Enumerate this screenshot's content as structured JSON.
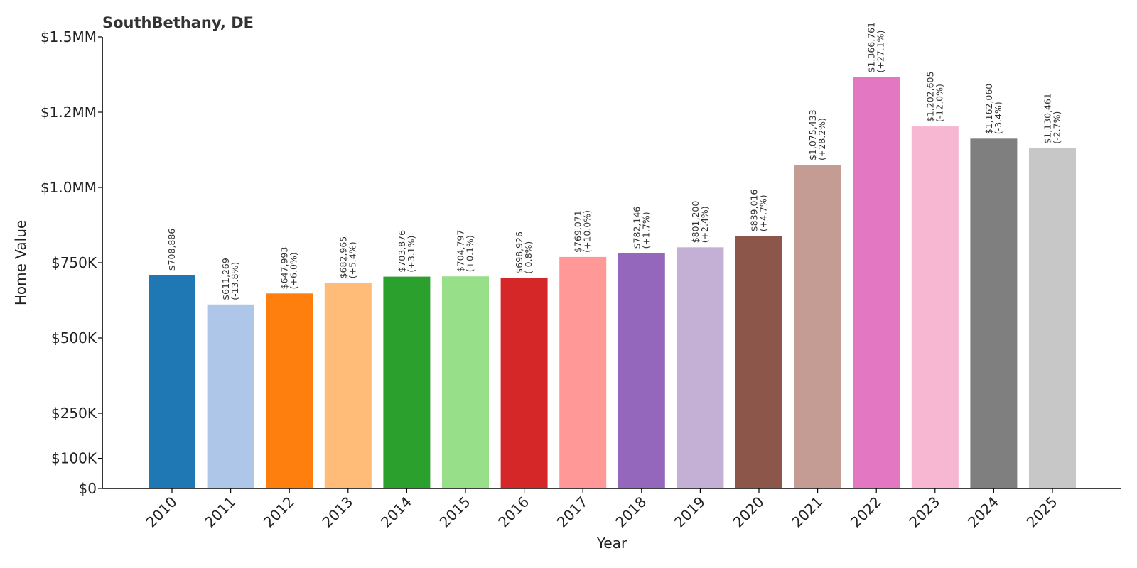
{
  "chart_data": {
    "type": "bar",
    "title": "SouthBethany, DE",
    "xlabel": "Year",
    "ylabel": "Home Value",
    "ylim": [
      0,
      1500000
    ],
    "yticks": [
      {
        "value": 0,
        "label": "$0"
      },
      {
        "value": 100000,
        "label": "$100K"
      },
      {
        "value": 250000,
        "label": "$250K"
      },
      {
        "value": 500000,
        "label": "$500K"
      },
      {
        "value": 750000,
        "label": "$750K"
      },
      {
        "value": 1000000,
        "label": "$1.0MM"
      },
      {
        "value": 1250000,
        "label": "$1.2MM"
      },
      {
        "value": 1500000,
        "label": "$1.5MM"
      }
    ],
    "grid": false,
    "legend": "none",
    "categories": [
      "2010",
      "2011",
      "2012",
      "2013",
      "2014",
      "2015",
      "2016",
      "2017",
      "2018",
      "2019",
      "2020",
      "2021",
      "2022",
      "2023",
      "2024",
      "2025"
    ],
    "values": [
      708886,
      611269,
      647993,
      682965,
      703876,
      704797,
      698926,
      769071,
      782146,
      801200,
      839016,
      1075433,
      1366761,
      1202605,
      1162060,
      1130461
    ],
    "value_labels": [
      "$708,886",
      "$611,269",
      "$647,993",
      "$682,965",
      "$703,876",
      "$704,797",
      "$698,926",
      "$769,071",
      "$782,146",
      "$801,200",
      "$839,016",
      "$1,075,433",
      "$1,366,761",
      "$1,202,605",
      "$1,162,060",
      "$1,130,461"
    ],
    "change_labels": [
      "",
      "(-13.8%)",
      "(+6.0%)",
      "(+5.4%)",
      "(+3.1%)",
      "(+0.1%)",
      "(-0.8%)",
      "(+10.0%)",
      "(+1.7%)",
      "(+2.4%)",
      "(+4.7%)",
      "(+28.2%)",
      "(+27.1%)",
      "(-12.0%)",
      "(-3.4%)",
      "(-2.7%)"
    ],
    "colors": [
      "#1f77b4",
      "#aec7e8",
      "#ff7f0e",
      "#ffbb78",
      "#2ca02c",
      "#98df8a",
      "#d62728",
      "#ff9896",
      "#9467bd",
      "#c5b0d5",
      "#8c564b",
      "#c49c94",
      "#e377c2",
      "#f7b6d2",
      "#7f7f7f",
      "#c7c7c7"
    ]
  }
}
